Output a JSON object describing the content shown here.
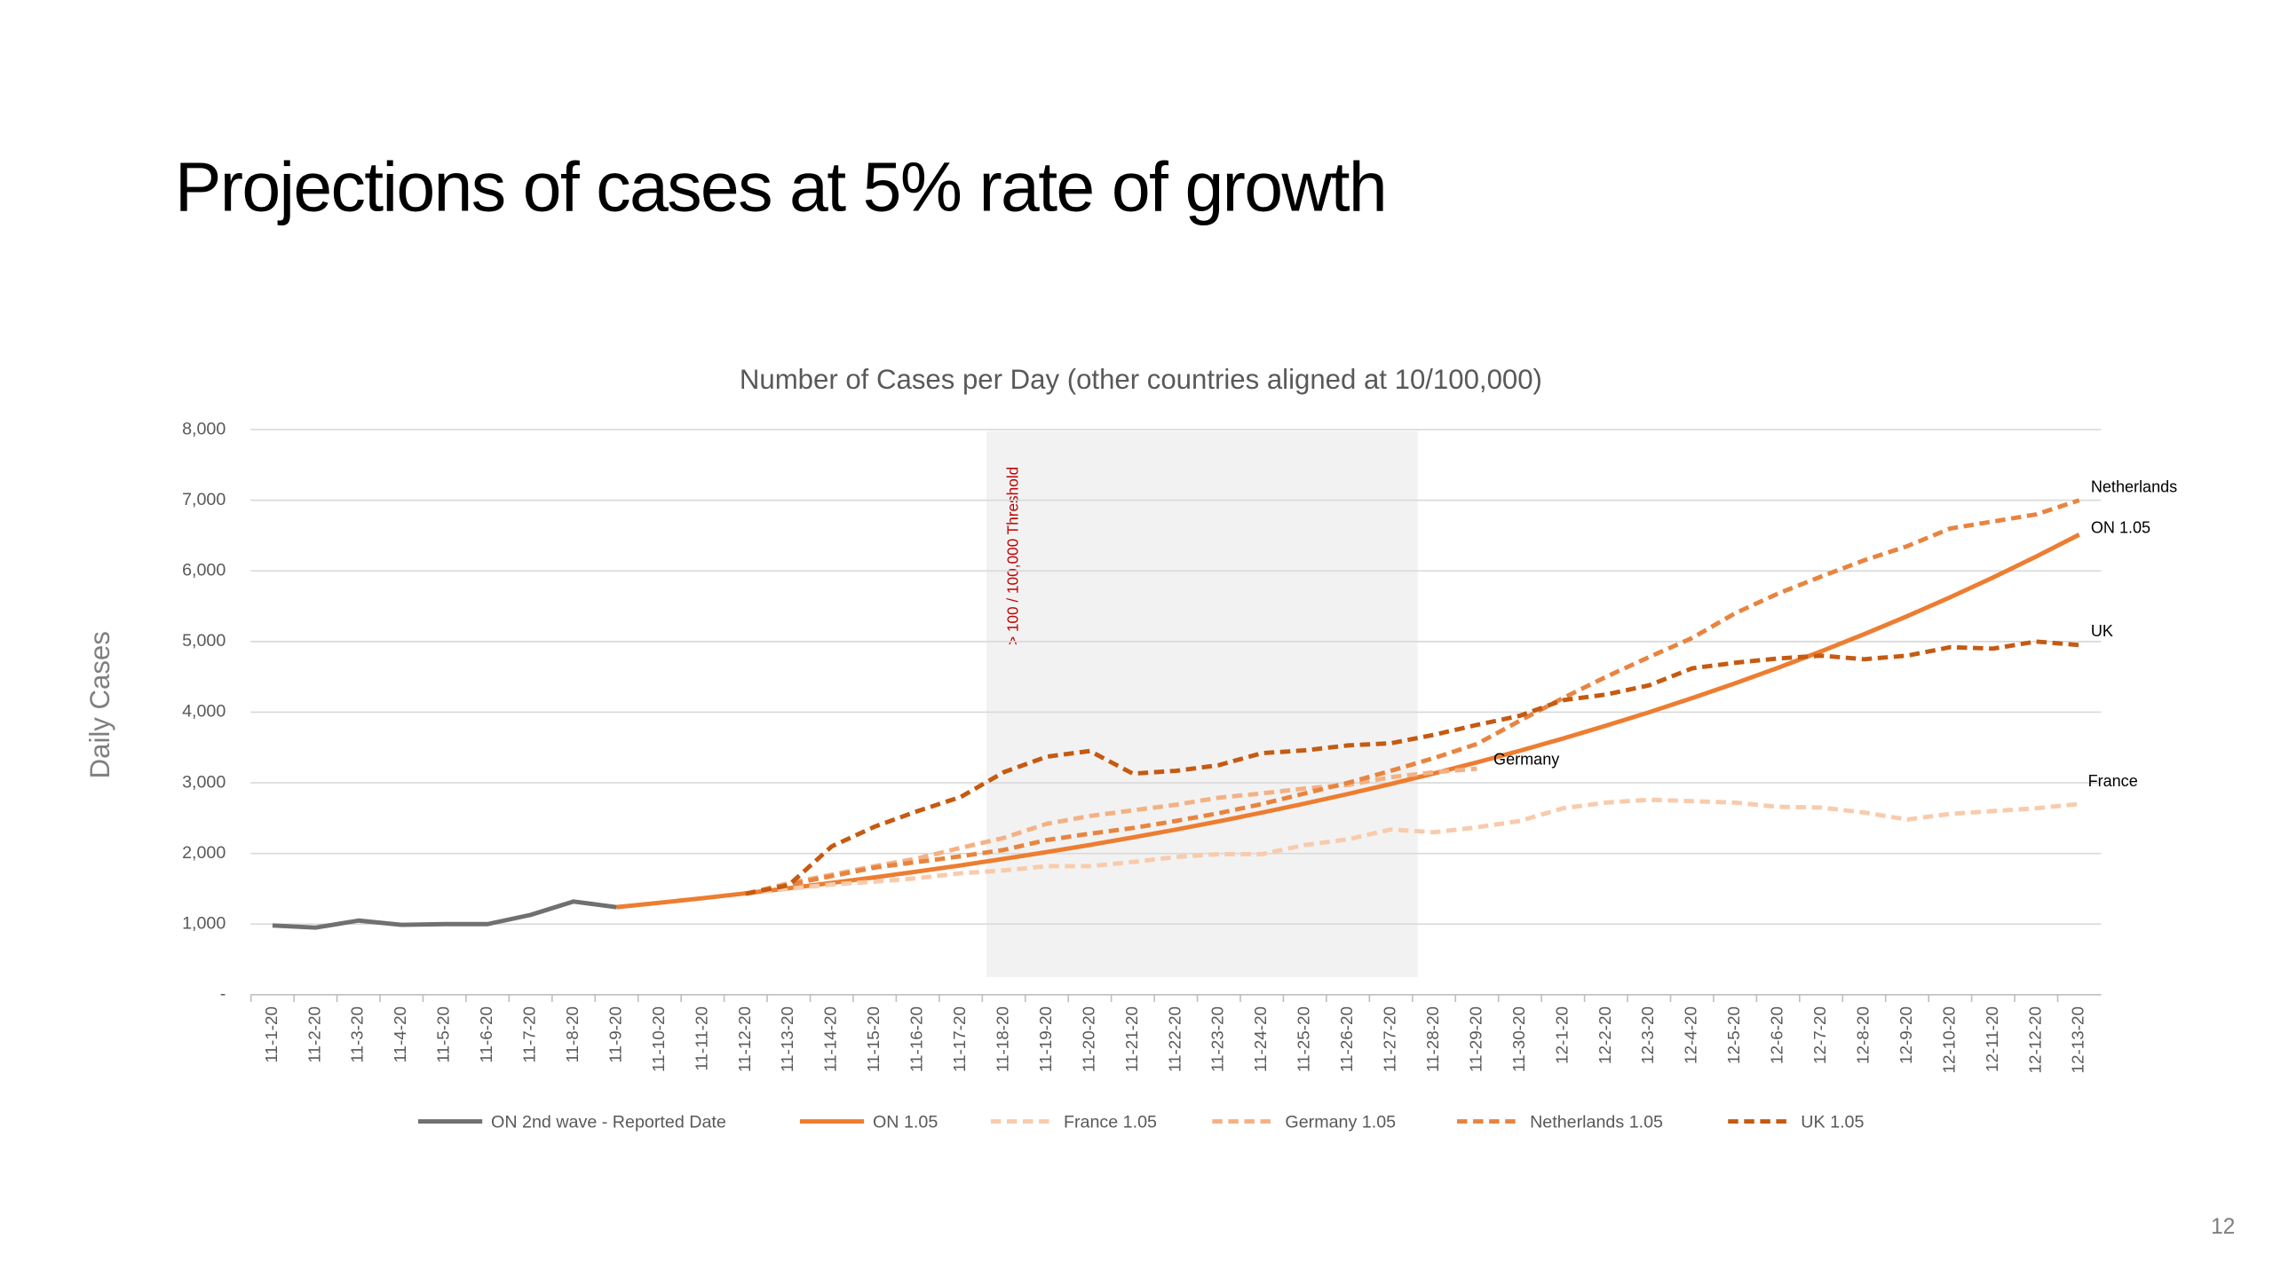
{
  "title": "Projections of cases at 5% rate of growth",
  "page_number": "12",
  "chart_data": {
    "type": "line",
    "title": "Number of Cases per Day (other countries aligned at 10/100,000)",
    "y_label": "Daily Cases",
    "threshold_label": "> 100 / 100,000 Threshold",
    "categories": [
      "11-1-20",
      "11-2-20",
      "11-3-20",
      "11-4-20",
      "11-5-20",
      "11-6-20",
      "11-7-20",
      "11-8-20",
      "11-9-20",
      "11-10-20",
      "11-11-20",
      "11-12-20",
      "11-13-20",
      "11-14-20",
      "11-15-20",
      "11-16-20",
      "11-17-20",
      "11-18-20",
      "11-19-20",
      "11-20-20",
      "11-21-20",
      "11-22-20",
      "11-23-20",
      "11-24-20",
      "11-25-20",
      "11-26-20",
      "11-27-20",
      "11-28-20",
      "11-29-20",
      "11-30-20",
      "12-1-20",
      "12-2-20",
      "12-3-20",
      "12-4-20",
      "12-5-20",
      "12-6-20",
      "12-7-20",
      "12-8-20",
      "12-9-20",
      "12-10-20",
      "12-11-20",
      "12-12-20",
      "12-13-20"
    ],
    "ylim": [
      0,
      8000
    ],
    "yticks": [
      {
        "value": 0,
        "label": "-"
      },
      {
        "value": 1000,
        "label": "1,000"
      },
      {
        "value": 2000,
        "label": "2,000"
      },
      {
        "value": 3000,
        "label": "3,000"
      },
      {
        "value": 4000,
        "label": "4,000"
      },
      {
        "value": 5000,
        "label": "5,000"
      },
      {
        "value": 6000,
        "label": "6,000"
      },
      {
        "value": 7000,
        "label": "7,000"
      },
      {
        "value": 8000,
        "label": "8,000"
      }
    ],
    "grid": true,
    "legend": "bottom",
    "series": [
      {
        "name": "ON 2nd wave - Reported Date",
        "color": "#707070",
        "dashed": false,
        "values": [
          980,
          950,
          1050,
          990,
          1000,
          1000,
          1130,
          1320,
          1240,
          null,
          null,
          null,
          null,
          null,
          null,
          null,
          null,
          null,
          null,
          null,
          null,
          null,
          null,
          null,
          null,
          null,
          null,
          null,
          null,
          null,
          null,
          null,
          null,
          null,
          null,
          null,
          null,
          null,
          null,
          null,
          null,
          null,
          null
        ]
      },
      {
        "name": "ON 1.05",
        "color": "#ed7d31",
        "dashed": false,
        "values": [
          null,
          null,
          null,
          null,
          null,
          null,
          null,
          null,
          1240,
          1302,
          1367,
          1435,
          1507,
          1583,
          1662,
          1745,
          1832,
          1924,
          2020,
          2121,
          2227,
          2338,
          2455,
          2578,
          2707,
          2842,
          2984,
          3133,
          3290,
          3455,
          3627,
          3809,
          3999,
          4199,
          4409,
          4629,
          4861,
          5104,
          5359,
          5627,
          5908,
          6204,
          6514
        ]
      },
      {
        "name": "France 1.05",
        "color": "#f8cbad",
        "dashed": true,
        "values": [
          null,
          null,
          null,
          null,
          null,
          null,
          null,
          null,
          null,
          null,
          null,
          1430,
          1500,
          1560,
          1600,
          1650,
          1720,
          1760,
          1820,
          1820,
          1880,
          1950,
          1990,
          1990,
          2120,
          2200,
          2340,
          2300,
          2370,
          2460,
          2640,
          2720,
          2760,
          2740,
          2720,
          2660,
          2650,
          2580,
          2480,
          2560,
          2600,
          2640,
          2700
        ]
      },
      {
        "name": "Germany 1.05",
        "color": "#f4b183",
        "dashed": true,
        "values": [
          null,
          null,
          null,
          null,
          null,
          null,
          null,
          null,
          null,
          null,
          null,
          1430,
          1580,
          1700,
          1820,
          1930,
          2080,
          2220,
          2420,
          2530,
          2610,
          2690,
          2790,
          2850,
          2920,
          2970,
          3080,
          3150,
          3200,
          null,
          null,
          null,
          null,
          null,
          null,
          null,
          null,
          null,
          null,
          null,
          null,
          null,
          null
        ]
      },
      {
        "name": "Netherlands 1.05",
        "color": "#e8843f",
        "dashed": true,
        "values": [
          null,
          null,
          null,
          null,
          null,
          null,
          null,
          null,
          null,
          null,
          null,
          1430,
          1560,
          1680,
          1800,
          1880,
          1960,
          2050,
          2190,
          2280,
          2360,
          2460,
          2570,
          2700,
          2850,
          3000,
          3170,
          3350,
          3550,
          3880,
          4200,
          4500,
          4780,
          5050,
          5400,
          5680,
          5920,
          6150,
          6350,
          6600,
          6700,
          6800,
          7000
        ]
      },
      {
        "name": "UK 1.05",
        "color": "#c55a11",
        "dashed": true,
        "values": [
          null,
          null,
          null,
          null,
          null,
          null,
          null,
          null,
          null,
          null,
          null,
          1430,
          1550,
          2100,
          2380,
          2600,
          2800,
          3150,
          3370,
          3450,
          3130,
          3170,
          3250,
          3420,
          3460,
          3530,
          3560,
          3680,
          3820,
          3950,
          4170,
          4250,
          4380,
          4620,
          4700,
          4760,
          4800,
          4750,
          4800,
          4920,
          4900,
          5000,
          4950
        ]
      }
    ],
    "annotations": [
      "Netherlands",
      "ON 1.05",
      "UK",
      "France",
      "Germany"
    ]
  }
}
